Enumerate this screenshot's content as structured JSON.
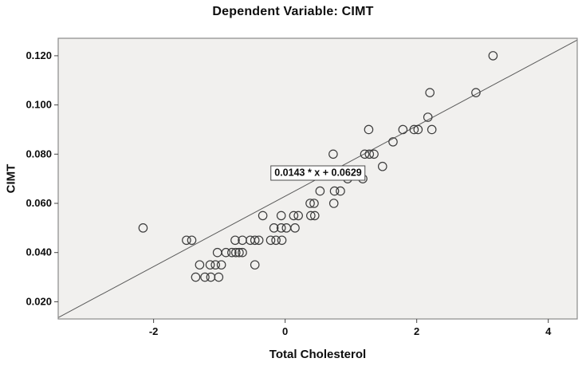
{
  "chart_data": {
    "type": "scatter",
    "title": "Dependent Variable: CIMT",
    "xlabel": "Total Cholesterol",
    "ylabel": "CIMT",
    "xlim": [
      -3.45,
      4.44
    ],
    "ylim": [
      0.013,
      0.1271
    ],
    "grid": false,
    "x_ticks": {
      "values": [
        -2,
        0,
        2,
        4
      ],
      "labels": [
        "-2",
        "0",
        "2",
        "4"
      ]
    },
    "y_ticks": {
      "values": [
        0.02,
        0.04,
        0.06,
        0.08,
        0.1,
        0.12
      ],
      "labels": [
        "0.020",
        "0.040",
        "0.060",
        "0.080",
        "0.100",
        "0.120"
      ]
    },
    "regression_line": {
      "slope": 0.0143,
      "intercept": 0.0629,
      "label": "0.0143 * x + 0.0629",
      "color": "#5a5a5a"
    },
    "marker": {
      "shape": "open-circle",
      "color": "#3c3c3c",
      "radius_px": 5.2
    },
    "plot_bg": "#f1f0ee",
    "frame_color": "#8a8a8a",
    "tick_color": "#444444",
    "text_color": "#0d0d0d",
    "points": [
      [
        3.16,
        0.12
      ],
      [
        2.2,
        0.105
      ],
      [
        2.9,
        0.105
      ],
      [
        2.17,
        0.095
      ],
      [
        1.27,
        0.09
      ],
      [
        1.79,
        0.09
      ],
      [
        1.96,
        0.09
      ],
      [
        2.02,
        0.09
      ],
      [
        2.23,
        0.09
      ],
      [
        1.64,
        0.085
      ],
      [
        0.73,
        0.08
      ],
      [
        1.21,
        0.08
      ],
      [
        1.28,
        0.08
      ],
      [
        1.35,
        0.08
      ],
      [
        1.48,
        0.075
      ],
      [
        0.95,
        0.07
      ],
      [
        1.18,
        0.07
      ],
      [
        0.53,
        0.065
      ],
      [
        0.75,
        0.065
      ],
      [
        0.84,
        0.065
      ],
      [
        0.38,
        0.06
      ],
      [
        0.44,
        0.06
      ],
      [
        0.74,
        0.06
      ],
      [
        -0.34,
        0.055
      ],
      [
        -0.06,
        0.055
      ],
      [
        0.13,
        0.055
      ],
      [
        0.2,
        0.055
      ],
      [
        0.39,
        0.055
      ],
      [
        0.45,
        0.055
      ],
      [
        -2.16,
        0.05
      ],
      [
        -0.17,
        0.05
      ],
      [
        -0.06,
        0.05
      ],
      [
        0.02,
        0.05
      ],
      [
        0.15,
        0.05
      ],
      [
        -1.5,
        0.045
      ],
      [
        -1.42,
        0.045
      ],
      [
        -0.76,
        0.045
      ],
      [
        -0.65,
        0.045
      ],
      [
        -0.53,
        0.045
      ],
      [
        -0.46,
        0.045
      ],
      [
        -0.4,
        0.045
      ],
      [
        -0.22,
        0.045
      ],
      [
        -0.14,
        0.045
      ],
      [
        -0.05,
        0.045
      ],
      [
        -1.03,
        0.04
      ],
      [
        -0.9,
        0.04
      ],
      [
        -0.81,
        0.04
      ],
      [
        -0.75,
        0.04
      ],
      [
        -0.7,
        0.04
      ],
      [
        -0.65,
        0.04
      ],
      [
        -1.3,
        0.035
      ],
      [
        -1.14,
        0.035
      ],
      [
        -1.06,
        0.035
      ],
      [
        -0.97,
        0.035
      ],
      [
        -0.46,
        0.035
      ],
      [
        -1.36,
        0.03
      ],
      [
        -1.22,
        0.03
      ],
      [
        -1.13,
        0.03
      ],
      [
        -1.01,
        0.03
      ]
    ]
  }
}
